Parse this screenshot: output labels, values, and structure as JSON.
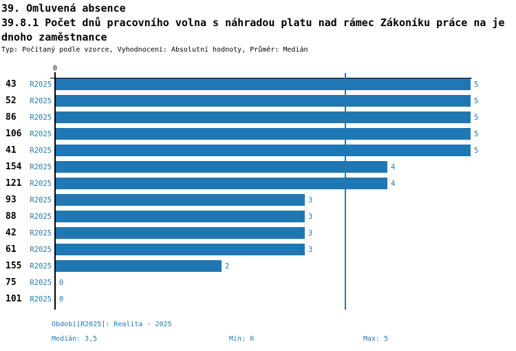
{
  "header": {
    "title": "39. Omluvená absence",
    "subtitle_line1": "39.8.1 Počet dnů pracovního volna s náhradou platu nad rámec Zákoníku práce na je",
    "subtitle_line2": "dnoho zaměstnance",
    "meta": "Typ: Počítaný podle vzorce, Vyhodnocení: Absolutní hodnoty, Průměr: Medián"
  },
  "chart_data": {
    "type": "bar",
    "orientation": "horizontal",
    "title": "39. Omluvená absence",
    "subtitle": "39.8.1 Počet dnů pracovního volna s náhradou platu nad rámec Zákoníku práce na jednoho zaměstnance",
    "categories": [
      "43",
      "52",
      "86",
      "106",
      "41",
      "154",
      "121",
      "93",
      "88",
      "42",
      "61",
      "155",
      "75",
      "101"
    ],
    "series": [
      {
        "name": "R2025",
        "values": [
          5,
          5,
          5,
          5,
          5,
          4,
          4,
          3,
          3,
          3,
          3,
          2,
          0,
          0
        ]
      }
    ],
    "row_period_label": "R2025",
    "axis_zero_label": "0",
    "xlim": [
      0,
      5
    ],
    "grid": false,
    "legend_position": "none",
    "median_value": 3.5,
    "min_value": 0,
    "max_value": 5,
    "colors": {
      "bar": "#1f77b4",
      "median_line": "#1f77b4",
      "value_label": "#1f77b4",
      "period_label": "#1f77b4",
      "footer_text": "#1f77b4",
      "axis": "#000000"
    }
  },
  "footer": {
    "period": "Období[R2025]: Realita - 2025",
    "median": "Medián: 3,5",
    "min": "Min: 0",
    "max": "Max: 5"
  }
}
